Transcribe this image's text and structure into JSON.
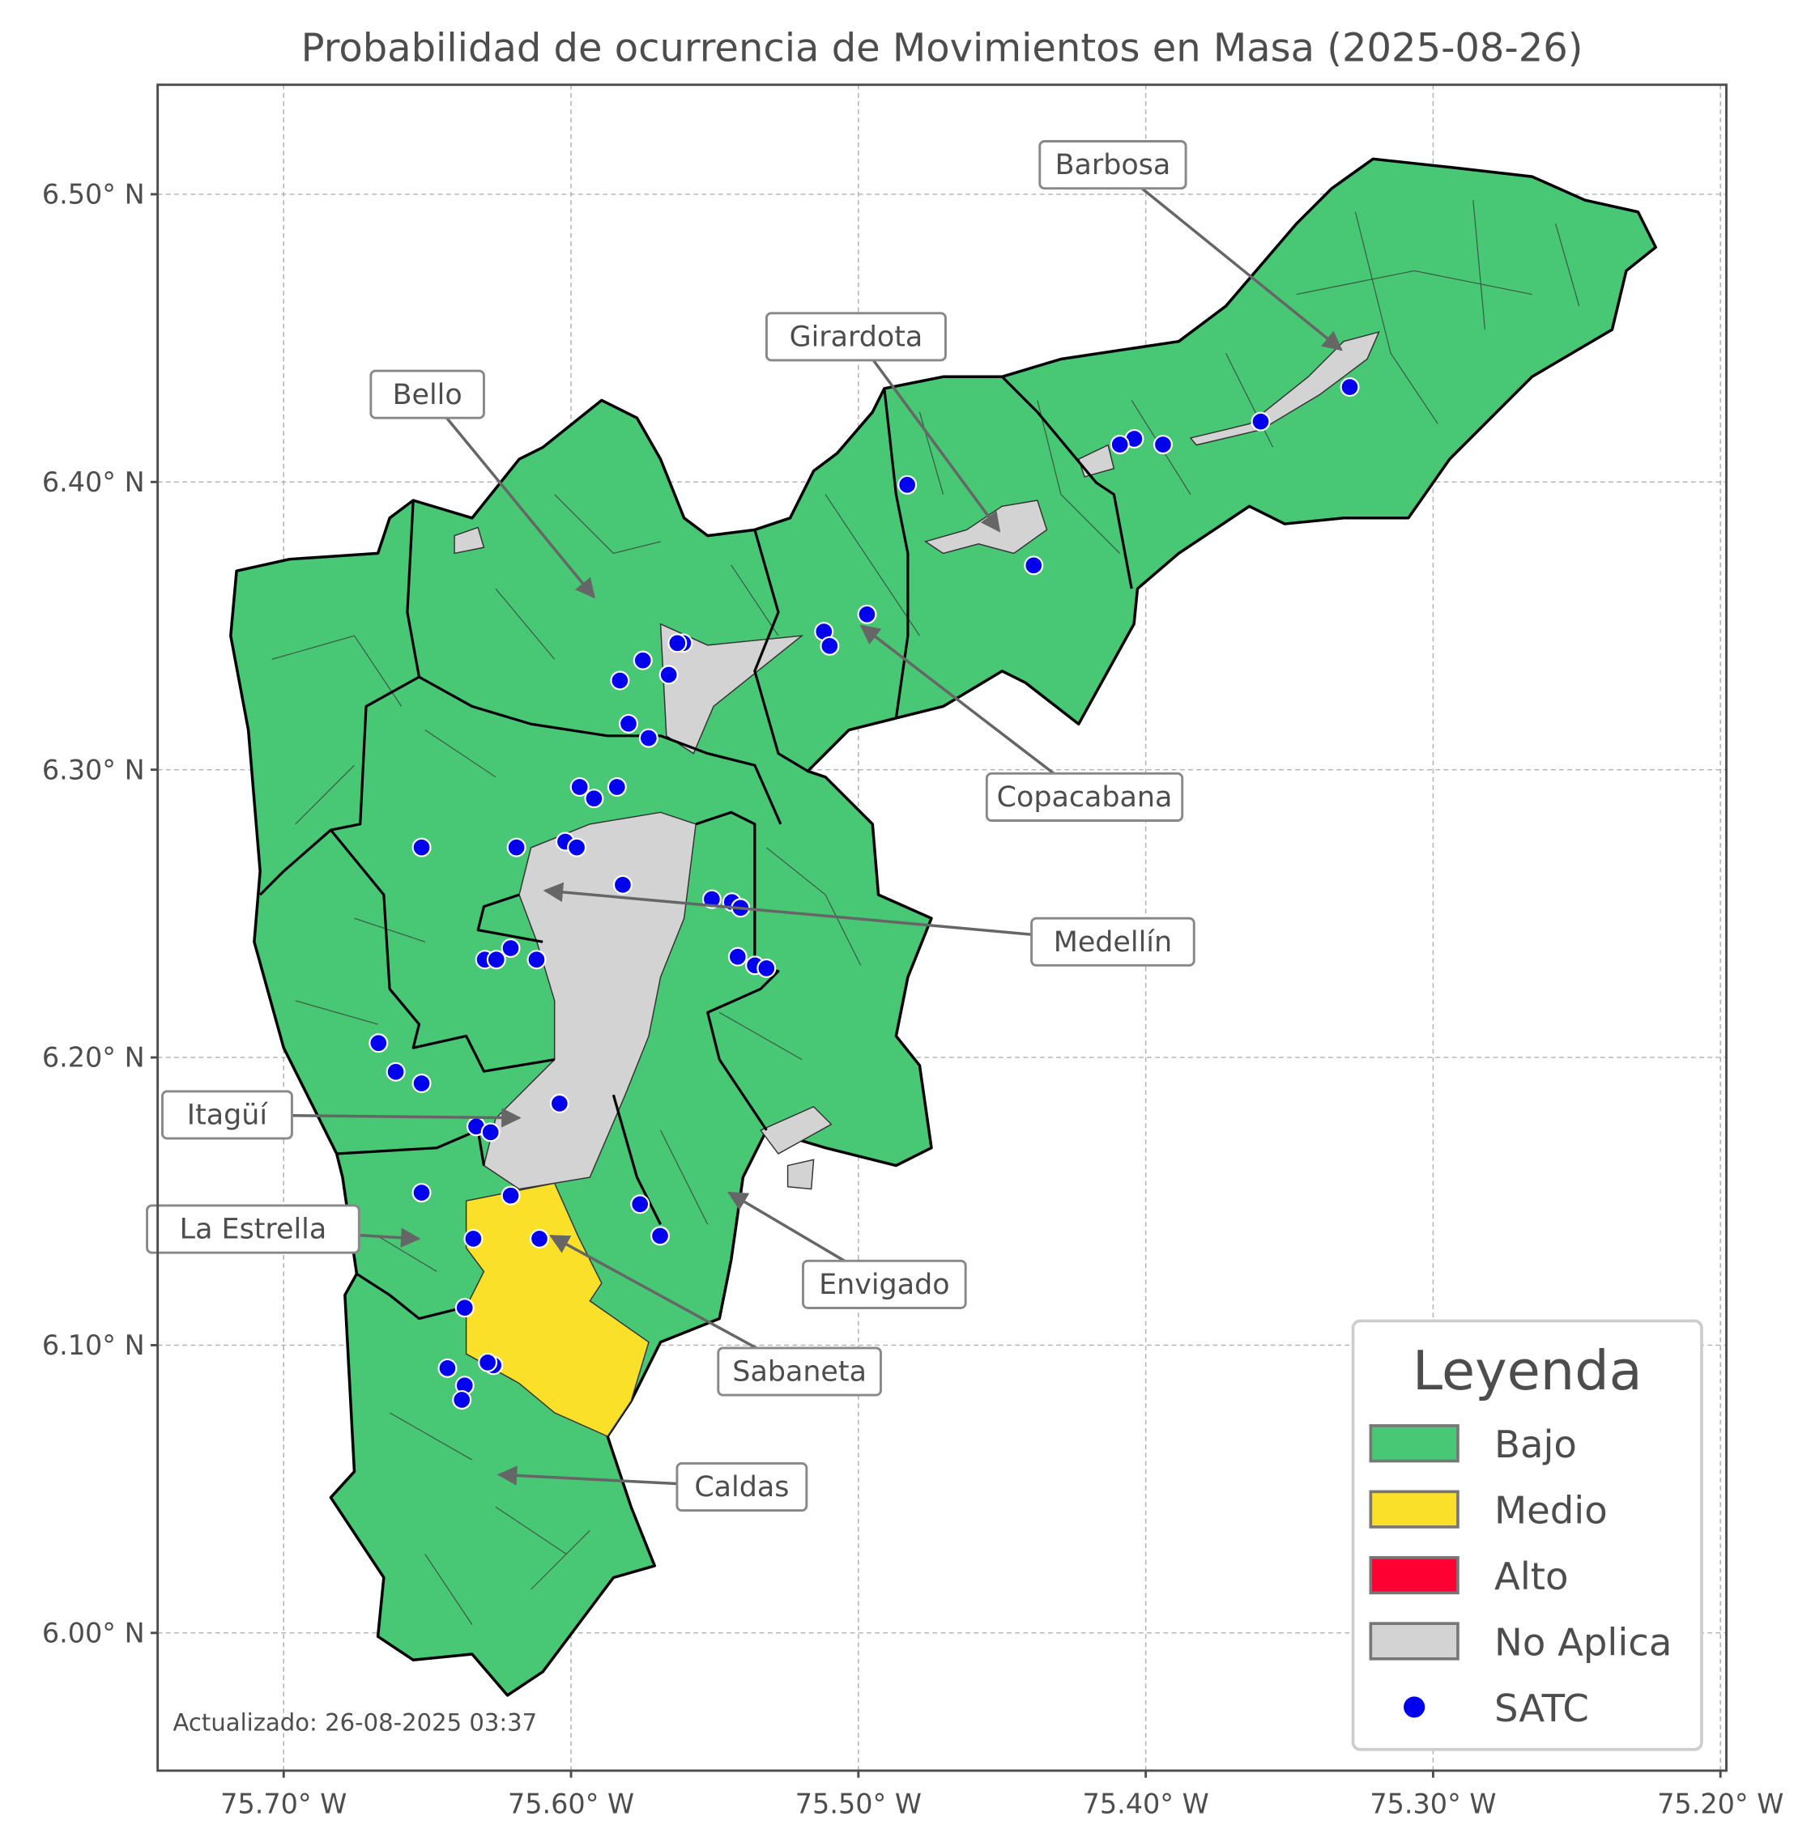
{
  "title": "Probabilidad de ocurrencia de Movimientos en Masa (2025-08-26)",
  "x_ticks": [
    "75.70° W",
    "75.60° W",
    "75.50° W",
    "75.40° W",
    "75.30° W",
    "75.20° W"
  ],
  "x_tick_values": [
    -75.7,
    -75.6,
    -75.5,
    -75.4,
    -75.3,
    -75.2
  ],
  "y_ticks": [
    "6.50° N",
    "6.40° N",
    "6.30° N",
    "6.20° N",
    "6.10° N",
    "6.00° N"
  ],
  "y_tick_values": [
    6.5,
    6.4,
    6.3,
    6.2,
    6.1,
    6.0
  ],
  "extent": {
    "lon": [
      -75.744,
      -75.197
    ],
    "lat": [
      5.955,
      6.537
    ]
  },
  "grid": true,
  "updated": "Actualizado: 26-08-2025 03:37",
  "colors": {
    "bajo": "#48c774",
    "medio": "#fbe02a",
    "alto": "#ff0033",
    "no_aplica": "#d3d3d3",
    "satc": "#0000ee"
  },
  "legend": {
    "title": "Leyenda",
    "placement": "lower-right",
    "items": [
      {
        "label": "Bajo",
        "type": "patch",
        "color": "#48c774"
      },
      {
        "label": "Medio",
        "type": "patch",
        "color": "#fbe02a"
      },
      {
        "label": "Alto",
        "type": "patch",
        "color": "#ff0033"
      },
      {
        "label": "No Aplica",
        "type": "patch",
        "color": "#d3d3d3"
      },
      {
        "label": "SATC",
        "type": "marker",
        "color": "#0000ee"
      }
    ]
  },
  "annotations": [
    {
      "label": "Barbosa",
      "lon": -75.332,
      "lat": 6.446
    },
    {
      "label": "Girardota",
      "lon": -75.451,
      "lat": 6.383
    },
    {
      "label": "Bello",
      "lon": -75.592,
      "lat": 6.36
    },
    {
      "label": "Copacabana",
      "lon": -75.499,
      "lat": 6.35
    },
    {
      "label": "Medellín",
      "lon": -75.609,
      "lat": 6.258
    },
    {
      "label": "Itagüí",
      "lon": -75.618,
      "lat": 6.179
    },
    {
      "label": "La Estrella",
      "lon": -75.653,
      "lat": 6.137
    },
    {
      "label": "Envigado",
      "lon": -75.545,
      "lat": 6.153
    },
    {
      "label": "Sabaneta",
      "lon": -75.607,
      "lat": 6.138
    },
    {
      "label": "Caldas",
      "lon": -75.625,
      "lat": 6.055
    }
  ],
  "satc_points": [
    [
      -75.329,
      6.433
    ],
    [
      -75.36,
      6.421
    ],
    [
      -75.394,
      6.413
    ],
    [
      -75.404,
      6.415
    ],
    [
      -75.409,
      6.413
    ],
    [
      -75.483,
      6.399
    ],
    [
      -75.439,
      6.371
    ],
    [
      -75.497,
      6.354
    ],
    [
      -75.512,
      6.348
    ],
    [
      -75.51,
      6.343
    ],
    [
      -75.561,
      6.344
    ],
    [
      -75.563,
      6.344
    ],
    [
      -75.575,
      6.338
    ],
    [
      -75.566,
      6.333
    ],
    [
      -75.583,
      6.331
    ],
    [
      -75.58,
      6.316
    ],
    [
      -75.573,
      6.311
    ],
    [
      -75.597,
      6.294
    ],
    [
      -75.592,
      6.29
    ],
    [
      -75.584,
      6.294
    ],
    [
      -75.652,
      6.273
    ],
    [
      -75.619,
      6.273
    ],
    [
      -75.602,
      6.275
    ],
    [
      -75.598,
      6.273
    ],
    [
      -75.582,
      6.26
    ],
    [
      -75.551,
      6.255
    ],
    [
      -75.544,
      6.254
    ],
    [
      -75.541,
      6.252
    ],
    [
      -75.542,
      6.235
    ],
    [
      -75.536,
      6.232
    ],
    [
      -75.532,
      6.231
    ],
    [
      -75.63,
      6.234
    ],
    [
      -75.626,
      6.234
    ],
    [
      -75.621,
      6.238
    ],
    [
      -75.612,
      6.234
    ],
    [
      -75.667,
      6.205
    ],
    [
      -75.661,
      6.195
    ],
    [
      -75.652,
      6.191
    ],
    [
      -75.604,
      6.184
    ],
    [
      -75.633,
      6.176
    ],
    [
      -75.628,
      6.174
    ],
    [
      -75.652,
      6.153
    ],
    [
      -75.621,
      6.152
    ],
    [
      -75.576,
      6.149
    ],
    [
      -75.569,
      6.138
    ],
    [
      -75.634,
      6.137
    ],
    [
      -75.611,
      6.137
    ],
    [
      -75.637,
      6.113
    ],
    [
      -75.643,
      6.092
    ],
    [
      -75.627,
      6.093
    ],
    [
      -75.629,
      6.094
    ],
    [
      -75.637,
      6.086
    ],
    [
      -75.638,
      6.081
    ]
  ]
}
